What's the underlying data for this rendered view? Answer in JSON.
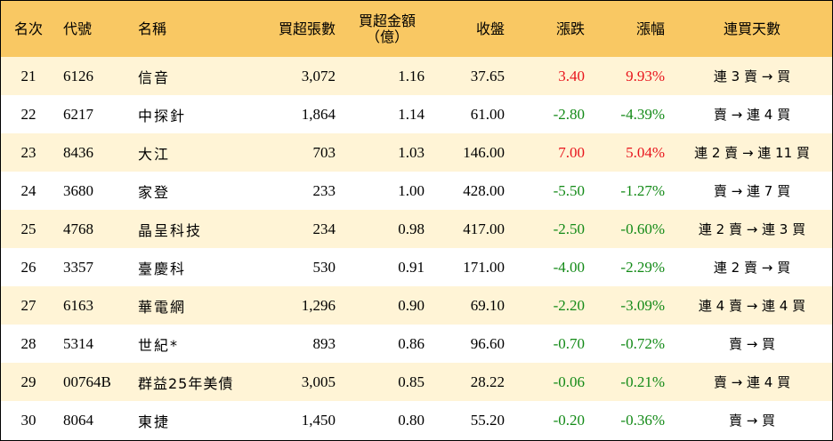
{
  "headers": {
    "rank": "名次",
    "code": "代號",
    "name": "名稱",
    "net_buy_lots": "買超張數",
    "net_buy_amount_line1": "買超金額",
    "net_buy_amount_line2": "（億）",
    "close": "收盤",
    "change": "漲跌",
    "change_pct": "漲幅",
    "streak": "連買天數"
  },
  "colors": {
    "header_bg": "#f9c863",
    "row_odd_bg": "#fff4d6",
    "row_even_bg": "#ffffff",
    "up": "#e8141c",
    "down": "#138a17"
  },
  "rows": [
    {
      "rank": "21",
      "code": "6126",
      "name": "信音",
      "lots": "3,072",
      "amount": "1.16",
      "close": "37.65",
      "change": "3.40",
      "pct": "9.93%",
      "streak": "連 3 賣 → 買",
      "dir": "up"
    },
    {
      "rank": "22",
      "code": "6217",
      "name": "中探針",
      "lots": "1,864",
      "amount": "1.14",
      "close": "61.00",
      "change": "-2.80",
      "pct": "-4.39%",
      "streak": "賣 → 連 4 買",
      "dir": "down"
    },
    {
      "rank": "23",
      "code": "8436",
      "name": "大江",
      "lots": "703",
      "amount": "1.03",
      "close": "146.00",
      "change": "7.00",
      "pct": "5.04%",
      "streak": "連 2 賣 → 連 11 買",
      "dir": "up"
    },
    {
      "rank": "24",
      "code": "3680",
      "name": "家登",
      "lots": "233",
      "amount": "1.00",
      "close": "428.00",
      "change": "-5.50",
      "pct": "-1.27%",
      "streak": "賣 → 連 7 買",
      "dir": "down"
    },
    {
      "rank": "25",
      "code": "4768",
      "name": "晶呈科技",
      "lots": "234",
      "amount": "0.98",
      "close": "417.00",
      "change": "-2.50",
      "pct": "-0.60%",
      "streak": "連 2 賣 → 連 3 買",
      "dir": "down"
    },
    {
      "rank": "26",
      "code": "3357",
      "name": "臺慶科",
      "lots": "530",
      "amount": "0.91",
      "close": "171.00",
      "change": "-4.00",
      "pct": "-2.29%",
      "streak": "連 2 賣 → 買",
      "dir": "down"
    },
    {
      "rank": "27",
      "code": "6163",
      "name": "華電網",
      "lots": "1,296",
      "amount": "0.90",
      "close": "69.10",
      "change": "-2.20",
      "pct": "-3.09%",
      "streak": "連 4 賣 → 連 4 買",
      "dir": "down"
    },
    {
      "rank": "28",
      "code": "5314",
      "name": "世紀*",
      "lots": "893",
      "amount": "0.86",
      "close": "96.60",
      "change": "-0.70",
      "pct": "-0.72%",
      "streak": "賣 → 買",
      "dir": "down"
    },
    {
      "rank": "29",
      "code": "00764B",
      "name": "群益25年美債",
      "lots": "3,005",
      "amount": "0.85",
      "close": "28.22",
      "change": "-0.06",
      "pct": "-0.21%",
      "streak": "賣 → 連 4 買",
      "dir": "down"
    },
    {
      "rank": "30",
      "code": "8064",
      "name": "東捷",
      "lots": "1,450",
      "amount": "0.80",
      "close": "55.20",
      "change": "-0.20",
      "pct": "-0.36%",
      "streak": "賣 → 買",
      "dir": "down"
    }
  ]
}
